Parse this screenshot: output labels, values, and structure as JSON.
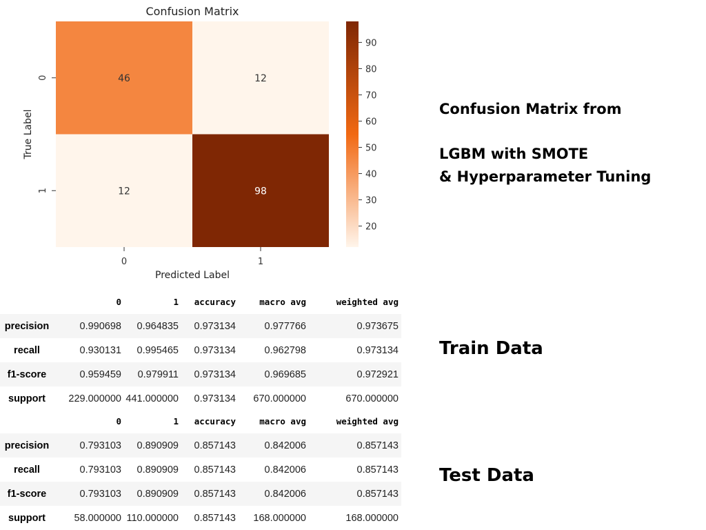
{
  "chart_data": {
    "type": "heatmap",
    "title": "Confusion Matrix",
    "xlabel": "Predicted Label",
    "ylabel": "True Label",
    "x_categories": [
      "0",
      "1"
    ],
    "y_categories": [
      "0",
      "1"
    ],
    "values": [
      [
        46,
        12
      ],
      [
        12,
        98
      ]
    ],
    "colorbar": {
      "ticks": [
        20,
        30,
        40,
        50,
        60,
        70,
        80,
        90
      ],
      "range": [
        12,
        98
      ]
    },
    "colormap": {
      "low": "#fff5eb",
      "mid": "#f16913",
      "high": "#7f2704"
    }
  },
  "side": {
    "line1": "Confusion Matrix from",
    "line2": "LGBM with SMOTE",
    "line3": "& Hyperparameter Tuning",
    "train_label": "Train Data",
    "test_label": "Test Data"
  },
  "train_report": {
    "columns": [
      "0",
      "1",
      "accuracy",
      "macro avg",
      "weighted avg"
    ],
    "rows": [
      {
        "name": "precision",
        "cells": [
          "0.990698",
          "0.964835",
          "0.973134",
          "0.977766",
          "0.973675"
        ]
      },
      {
        "name": "recall",
        "cells": [
          "0.930131",
          "0.995465",
          "0.973134",
          "0.962798",
          "0.973134"
        ]
      },
      {
        "name": "f1-score",
        "cells": [
          "0.959459",
          "0.979911",
          "0.973134",
          "0.969685",
          "0.972921"
        ]
      },
      {
        "name": "support",
        "cells": [
          "229.000000",
          "441.000000",
          "0.973134",
          "670.000000",
          "670.000000"
        ]
      }
    ]
  },
  "test_report": {
    "columns": [
      "0",
      "1",
      "accuracy",
      "macro avg",
      "weighted avg"
    ],
    "rows": [
      {
        "name": "precision",
        "cells": [
          "0.793103",
          "0.890909",
          "0.857143",
          "0.842006",
          "0.857143"
        ]
      },
      {
        "name": "recall",
        "cells": [
          "0.793103",
          "0.890909",
          "0.857143",
          "0.842006",
          "0.857143"
        ]
      },
      {
        "name": "f1-score",
        "cells": [
          "0.793103",
          "0.890909",
          "0.857143",
          "0.842006",
          "0.857143"
        ]
      },
      {
        "name": "support",
        "cells": [
          "58.000000",
          "110.000000",
          "0.857143",
          "168.000000",
          "168.000000"
        ]
      }
    ]
  }
}
